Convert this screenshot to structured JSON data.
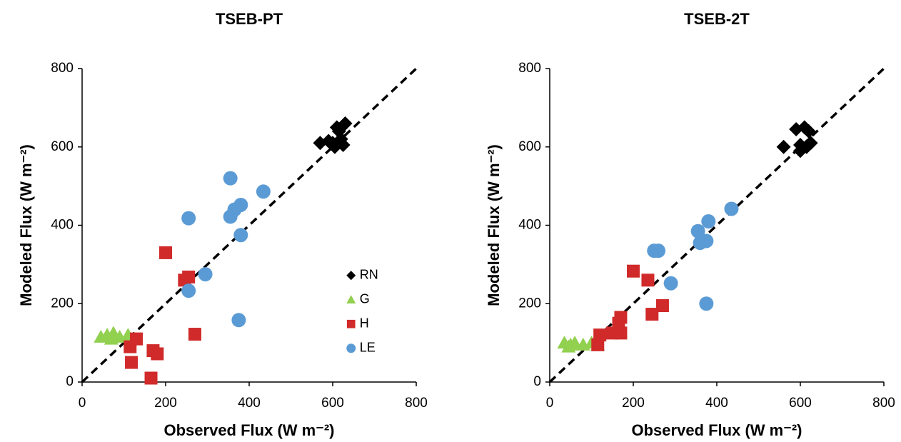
{
  "chart_data": [
    {
      "type": "scatter",
      "title": "TSEB-PT",
      "x_label": "Observed Flux (W m⁻²)",
      "y_label": "Modeled Flux (W m⁻²)",
      "xlim": [
        0,
        800
      ],
      "ylim": [
        0,
        800
      ],
      "xticks": [
        0,
        200,
        400,
        600,
        800
      ],
      "yticks": [
        0,
        200,
        400,
        600,
        800
      ],
      "legend": "center-right",
      "series": [
        {
          "name": "RN",
          "color": "#000000",
          "marker": "diamond",
          "x": [
            600,
            610,
            620,
            630,
            605,
            590,
            615,
            570,
            625
          ],
          "values": [
            610,
            650,
            620,
            660,
            600,
            615,
            640,
            610,
            605
          ]
        },
        {
          "name": "G",
          "color": "#92d050",
          "marker": "triangle",
          "x": [
            45,
            60,
            75,
            90,
            110,
            70
          ],
          "values": [
            115,
            120,
            125,
            115,
            120,
            110
          ]
        },
        {
          "name": "H",
          "color": "#d02a2a",
          "marker": "square",
          "x": [
            200,
            245,
            255,
            270,
            130,
            115,
            118,
            165,
            170,
            180
          ],
          "values": [
            330,
            260,
            268,
            122,
            110,
            90,
            50,
            10,
            80,
            72
          ]
        },
        {
          "name": "LE",
          "color": "#5b9bd5",
          "marker": "circle",
          "x": [
            355,
            255,
            434,
            380,
            365,
            355,
            380,
            295,
            255,
            375
          ],
          "values": [
            520,
            418,
            486,
            452,
            440,
            422,
            375,
            275,
            233,
            158
          ]
        }
      ]
    },
    {
      "type": "scatter",
      "title": "TSEB-2T",
      "x_label": "Observed Flux (W m⁻²)",
      "y_label": "Modeled Flux (W m⁻²)",
      "xlim": [
        0,
        800
      ],
      "ylim": [
        0,
        800
      ],
      "xticks": [
        0,
        200,
        400,
        600,
        800
      ],
      "yticks": [
        0,
        200,
        400,
        600,
        800
      ],
      "series": [
        {
          "name": "RN",
          "color": "#000000",
          "marker": "diamond",
          "x": [
            600,
            610,
            620,
            625,
            560,
            600,
            615,
            590
          ],
          "values": [
            605,
            650,
            640,
            610,
            600,
            590,
            600,
            645
          ]
        },
        {
          "name": "G",
          "color": "#92d050",
          "marker": "triangle",
          "x": [
            35,
            50,
            60,
            80,
            100,
            115,
            45
          ],
          "values": [
            100,
            95,
            100,
            95,
            100,
            95,
            90
          ]
        },
        {
          "name": "H",
          "color": "#d02a2a",
          "marker": "square",
          "x": [
            200,
            235,
            270,
            245,
            170,
            165,
            170,
            150,
            120,
            115
          ],
          "values": [
            283,
            260,
            195,
            173,
            165,
            150,
            125,
            125,
            120,
            95
          ]
        },
        {
          "name": "LE",
          "color": "#5b9bd5",
          "marker": "circle",
          "x": [
            250,
            260,
            355,
            360,
            380,
            375,
            435,
            290,
            375
          ],
          "values": [
            335,
            335,
            385,
            355,
            410,
            360,
            442,
            252,
            200
          ]
        }
      ]
    }
  ]
}
